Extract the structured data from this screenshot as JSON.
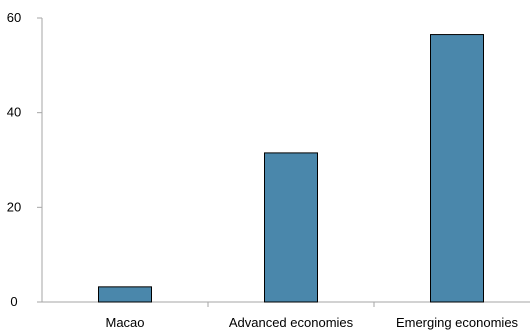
{
  "chart_data": {
    "type": "bar",
    "categories": [
      "Macao",
      "Advanced economies",
      "Emerging economies"
    ],
    "values": [
      3.2,
      31.5,
      56.5
    ],
    "ylim": [
      0,
      60
    ],
    "yticks": [
      0,
      20,
      40,
      60
    ],
    "title": "",
    "xlabel": "",
    "ylabel": "",
    "grid": false,
    "legend": "none",
    "colors": {
      "bar": "#4a87ab",
      "bar_edge": "#000000",
      "axis": "#a6a6a6"
    }
  }
}
